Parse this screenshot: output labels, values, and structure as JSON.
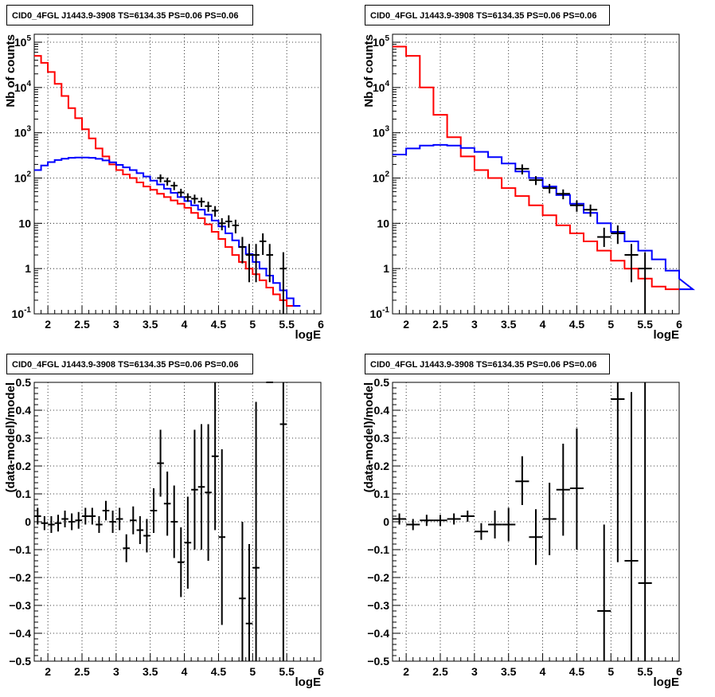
{
  "chart_data": [
    {
      "type": "line",
      "title": "CID0_4FGL J1443.9-3908 TS=6134.35 PS=0.06 PS=0.06",
      "xlabel": "logE",
      "ylabel": "Nb of counts",
      "xlim": [
        1.8,
        6.0
      ],
      "ylim": [
        0.1,
        150000
      ],
      "yscale": "log",
      "grid": true,
      "x_ticks": [
        "2",
        "2.5",
        "3",
        "3.5",
        "4",
        "4.5",
        "5",
        "5.5",
        "6"
      ],
      "y_ticks": [
        "10^-1",
        "1",
        "10",
        "10^2",
        "10^3",
        "10^4",
        "10^5"
      ],
      "bin_width": 0.1,
      "bins_start": 1.8,
      "series": [
        {
          "color": "#ff0000",
          "values": [
            50000,
            35000,
            22000,
            12000,
            6500,
            3500,
            2100,
            1200,
            750,
            450,
            300,
            200,
            150,
            120,
            100,
            80,
            65,
            55,
            45,
            38,
            32,
            27,
            22,
            17,
            13,
            9.5,
            6.5,
            4.5,
            3.0,
            2.0,
            1.4,
            1.0,
            0.75,
            0.55,
            0.38,
            0.27,
            0.2,
            0.15
          ]
        },
        {
          "color": "#0000ff",
          "values": [
            150,
            190,
            225,
            250,
            268,
            280,
            285,
            285,
            280,
            265,
            245,
            222,
            195,
            172,
            150,
            128,
            108,
            88,
            72,
            58,
            47,
            38,
            31,
            25,
            20,
            15.5,
            11.5,
            8.5,
            6.0,
            4.2,
            3.0,
            2.1,
            1.4,
            1.0,
            0.7,
            0.48,
            0.33,
            0.22,
            0.15
          ]
        }
      ],
      "points": [
        {
          "x": 3.65,
          "y": 100,
          "xerr": 0.05,
          "ylo": 80,
          "yhi": 120
        },
        {
          "x": 3.75,
          "y": 85,
          "xerr": 0.05,
          "ylo": 68,
          "yhi": 102
        },
        {
          "x": 3.85,
          "y": 68,
          "xerr": 0.05,
          "ylo": 54,
          "yhi": 82
        },
        {
          "x": 3.95,
          "y": 48,
          "xerr": 0.05,
          "ylo": 38,
          "yhi": 58
        },
        {
          "x": 4.05,
          "y": 38,
          "xerr": 0.05,
          "ylo": 30,
          "yhi": 46
        },
        {
          "x": 4.15,
          "y": 35,
          "xerr": 0.05,
          "ylo": 27,
          "yhi": 43
        },
        {
          "x": 4.25,
          "y": 30,
          "xerr": 0.05,
          "ylo": 23,
          "yhi": 37
        },
        {
          "x": 4.35,
          "y": 24,
          "xerr": 0.05,
          "ylo": 18,
          "yhi": 30
        },
        {
          "x": 4.45,
          "y": 19,
          "xerr": 0.05,
          "ylo": 14,
          "yhi": 24
        },
        {
          "x": 4.55,
          "y": 10,
          "xerr": 0.05,
          "ylo": 7,
          "yhi": 13
        },
        {
          "x": 4.65,
          "y": 11,
          "xerr": 0.05,
          "ylo": 8,
          "yhi": 15
        },
        {
          "x": 4.75,
          "y": 9,
          "xerr": 0.05,
          "ylo": 6,
          "yhi": 12
        },
        {
          "x": 4.85,
          "y": 3,
          "xerr": 0.05,
          "ylo": 1.3,
          "yhi": 5
        },
        {
          "x": 4.95,
          "y": 2,
          "xerr": 0.05,
          "ylo": 0.5,
          "yhi": 3.5
        },
        {
          "x": 5.05,
          "y": 2,
          "xerr": 0.05,
          "ylo": 0.5,
          "yhi": 3.5
        },
        {
          "x": 5.15,
          "y": 4,
          "xerr": 0.05,
          "ylo": 2,
          "yhi": 6
        },
        {
          "x": 5.25,
          "y": 2,
          "xerr": 0.05,
          "ylo": 0.5,
          "yhi": 3.5
        },
        {
          "x": 5.45,
          "y": 1,
          "xerr": 0.05,
          "ylo": 0.1,
          "yhi": 2.3
        }
      ]
    },
    {
      "type": "line",
      "title": "CID0_4FGL J1443.9-3908 TS=6134.35 PS=0.06 PS=0.06",
      "xlabel": "logE",
      "ylabel": "Nb of counts",
      "xlim": [
        1.8,
        6.0
      ],
      "ylim": [
        0.1,
        150000
      ],
      "yscale": "log",
      "grid": true,
      "x_ticks": [
        "2",
        "2.5",
        "3",
        "3.5",
        "4",
        "4.5",
        "5",
        "5.5",
        "6"
      ],
      "y_ticks": [
        "10^-1",
        "1",
        "10",
        "10^2",
        "10^3",
        "10^4",
        "10^5"
      ],
      "bin_width": 0.2,
      "bins_start": 1.8,
      "series": [
        {
          "color": "#ff0000",
          "values": [
            80000,
            50000,
            10000,
            2500,
            800,
            300,
            150,
            100,
            60,
            40,
            25,
            15,
            9,
            6,
            4,
            2.5,
            1.5,
            1.0,
            0.6,
            0.4,
            0.35
          ]
        },
        {
          "color": "#0000ff",
          "values": [
            330,
            450,
            520,
            540,
            520,
            460,
            380,
            290,
            210,
            140,
            100,
            65,
            42,
            27,
            17,
            10,
            6.5,
            4,
            2.5,
            1.6,
            0.9,
            0.6,
            0.35
          ]
        }
      ],
      "points": [
        {
          "x": 3.7,
          "y": 160,
          "xerr": 0.1,
          "ylo": 120,
          "yhi": 200
        },
        {
          "x": 3.9,
          "y": 90,
          "xerr": 0.1,
          "ylo": 70,
          "yhi": 110
        },
        {
          "x": 4.1,
          "y": 60,
          "xerr": 0.1,
          "ylo": 46,
          "yhi": 74
        },
        {
          "x": 4.3,
          "y": 45,
          "xerr": 0.1,
          "ylo": 34,
          "yhi": 56
        },
        {
          "x": 4.5,
          "y": 25,
          "xerr": 0.1,
          "ylo": 18,
          "yhi": 32
        },
        {
          "x": 4.7,
          "y": 20,
          "xerr": 0.1,
          "ylo": 14,
          "yhi": 26
        },
        {
          "x": 4.9,
          "y": 5,
          "xerr": 0.1,
          "ylo": 3,
          "yhi": 8
        },
        {
          "x": 5.1,
          "y": 6,
          "xerr": 0.1,
          "ylo": 3.5,
          "yhi": 9
        },
        {
          "x": 5.3,
          "y": 2,
          "xerr": 0.1,
          "ylo": 0.5,
          "yhi": 3.5
        },
        {
          "x": 5.5,
          "y": 1,
          "xerr": 0.1,
          "ylo": 0.1,
          "yhi": 2.3
        }
      ]
    },
    {
      "type": "scatter",
      "title": "CID0_4FGL J1443.9-3908 TS=6134.35 PS=0.06 PS=0.06",
      "xlabel": "logE",
      "ylabel": "(data-model)/model",
      "xlim": [
        1.8,
        6.0
      ],
      "ylim": [
        -0.5,
        0.5
      ],
      "grid": true,
      "x_ticks": [
        "2",
        "2.5",
        "3",
        "3.5",
        "4",
        "4.5",
        "5",
        "5.5",
        "6"
      ],
      "y_ticks": [
        "-0.5",
        "-0.4",
        "-0.3",
        "-0.2",
        "-0.1",
        "0",
        "0.1",
        "0.2",
        "0.3",
        "0.4",
        "0.5"
      ],
      "points": [
        {
          "x": 1.85,
          "y": 0.02,
          "xerr": 0.05,
          "ylo": -0.01,
          "yhi": 0.05
        },
        {
          "x": 1.95,
          "y": -0.005,
          "xerr": 0.05,
          "ylo": -0.03,
          "yhi": 0.02
        },
        {
          "x": 2.05,
          "y": -0.01,
          "xerr": 0.05,
          "ylo": -0.04,
          "yhi": 0.02
        },
        {
          "x": 2.15,
          "y": -0.005,
          "xerr": 0.05,
          "ylo": -0.035,
          "yhi": 0.025
        },
        {
          "x": 2.25,
          "y": 0.01,
          "xerr": 0.05,
          "ylo": -0.02,
          "yhi": 0.04
        },
        {
          "x": 2.35,
          "y": 0.0,
          "xerr": 0.05,
          "ylo": -0.03,
          "yhi": 0.03
        },
        {
          "x": 2.45,
          "y": 0.005,
          "xerr": 0.05,
          "ylo": -0.025,
          "yhi": 0.035
        },
        {
          "x": 2.55,
          "y": 0.02,
          "xerr": 0.05,
          "ylo": -0.01,
          "yhi": 0.05
        },
        {
          "x": 2.65,
          "y": 0.02,
          "xerr": 0.05,
          "ylo": -0.01,
          "yhi": 0.05
        },
        {
          "x": 2.75,
          "y": -0.01,
          "xerr": 0.05,
          "ylo": -0.04,
          "yhi": 0.02
        },
        {
          "x": 2.85,
          "y": 0.04,
          "xerr": 0.05,
          "ylo": 0.005,
          "yhi": 0.075
        },
        {
          "x": 2.95,
          "y": 0.0,
          "xerr": 0.05,
          "ylo": -0.04,
          "yhi": 0.04
        },
        {
          "x": 3.05,
          "y": 0.01,
          "xerr": 0.05,
          "ylo": -0.03,
          "yhi": 0.05
        },
        {
          "x": 3.15,
          "y": -0.095,
          "xerr": 0.05,
          "ylo": -0.145,
          "yhi": -0.045
        },
        {
          "x": 3.25,
          "y": 0.005,
          "xerr": 0.05,
          "ylo": -0.045,
          "yhi": 0.055
        },
        {
          "x": 3.35,
          "y": -0.03,
          "xerr": 0.05,
          "ylo": -0.08,
          "yhi": 0.02
        },
        {
          "x": 3.45,
          "y": -0.05,
          "xerr": 0.05,
          "ylo": -0.11,
          "yhi": 0.01
        },
        {
          "x": 3.55,
          "y": 0.04,
          "xerr": 0.05,
          "ylo": -0.04,
          "yhi": 0.12
        },
        {
          "x": 3.65,
          "y": 0.21,
          "xerr": 0.05,
          "ylo": 0.09,
          "yhi": 0.33
        },
        {
          "x": 3.75,
          "y": 0.065,
          "xerr": 0.05,
          "ylo": -0.05,
          "yhi": 0.18
        },
        {
          "x": 3.85,
          "y": 0.0,
          "xerr": 0.05,
          "ylo": -0.13,
          "yhi": 0.13
        },
        {
          "x": 3.95,
          "y": -0.145,
          "xerr": 0.05,
          "ylo": -0.27,
          "yhi": -0.02
        },
        {
          "x": 4.05,
          "y": -0.075,
          "xerr": 0.05,
          "ylo": -0.24,
          "yhi": 0.09
        },
        {
          "x": 4.15,
          "y": 0.115,
          "xerr": 0.05,
          "ylo": -0.1,
          "yhi": 0.33
        },
        {
          "x": 4.25,
          "y": 0.125,
          "xerr": 0.05,
          "ylo": -0.1,
          "yhi": 0.35
        },
        {
          "x": 4.35,
          "y": 0.105,
          "xerr": 0.05,
          "ylo": -0.14,
          "yhi": 0.35
        },
        {
          "x": 4.45,
          "y": 0.235,
          "xerr": 0.05,
          "ylo": -0.03,
          "yhi": 0.5
        },
        {
          "x": 4.55,
          "y": -0.055,
          "xerr": 0.05,
          "ylo": -0.37,
          "yhi": 0.26
        },
        {
          "x": 4.85,
          "y": -0.275,
          "xerr": 0.05,
          "ylo": -0.5,
          "yhi": 0.0
        },
        {
          "x": 4.95,
          "y": -0.365,
          "xerr": 0.05,
          "ylo": -0.5,
          "yhi": -0.08
        },
        {
          "x": 5.05,
          "y": -0.165,
          "xerr": 0.05,
          "ylo": -0.5,
          "yhi": 0.43
        },
        {
          "x": 5.25,
          "y": 0.5,
          "xerr": 0.05,
          "ylo": 0.5,
          "yhi": 0.5
        },
        {
          "x": 5.45,
          "y": 0.35,
          "xerr": 0.05,
          "ylo": -0.5,
          "yhi": 0.5
        }
      ]
    },
    {
      "type": "scatter",
      "title": "CID0_4FGL J1443.9-3908 TS=6134.35 PS=0.06 PS=0.06",
      "xlabel": "logE",
      "ylabel": "(data-model)/model",
      "xlim": [
        1.8,
        6.0
      ],
      "ylim": [
        -0.5,
        0.5
      ],
      "grid": true,
      "x_ticks": [
        "2",
        "2.5",
        "3",
        "3.5",
        "4",
        "4.5",
        "5",
        "5.5",
        "6"
      ],
      "y_ticks": [
        "-0.5",
        "-0.4",
        "-0.3",
        "-0.2",
        "-0.1",
        "0",
        "0.1",
        "0.2",
        "0.3",
        "0.4",
        "0.5"
      ],
      "points": [
        {
          "x": 1.9,
          "y": 0.01,
          "xerr": 0.1,
          "ylo": -0.01,
          "yhi": 0.03
        },
        {
          "x": 2.1,
          "y": -0.01,
          "xerr": 0.1,
          "ylo": -0.03,
          "yhi": 0.01
        },
        {
          "x": 2.3,
          "y": 0.005,
          "xerr": 0.1,
          "ylo": -0.015,
          "yhi": 0.025
        },
        {
          "x": 2.5,
          "y": 0.005,
          "xerr": 0.1,
          "ylo": -0.015,
          "yhi": 0.025
        },
        {
          "x": 2.7,
          "y": 0.01,
          "xerr": 0.1,
          "ylo": -0.01,
          "yhi": 0.03
        },
        {
          "x": 2.9,
          "y": 0.02,
          "xerr": 0.1,
          "ylo": 0.0,
          "yhi": 0.04
        },
        {
          "x": 3.1,
          "y": -0.035,
          "xerr": 0.1,
          "ylo": -0.065,
          "yhi": -0.005
        },
        {
          "x": 3.3,
          "y": -0.01,
          "xerr": 0.1,
          "ylo": -0.06,
          "yhi": 0.04
        },
        {
          "x": 3.5,
          "y": -0.01,
          "xerr": 0.1,
          "ylo": -0.07,
          "yhi": 0.05
        },
        {
          "x": 3.7,
          "y": 0.145,
          "xerr": 0.1,
          "ylo": 0.06,
          "yhi": 0.235
        },
        {
          "x": 3.9,
          "y": -0.055,
          "xerr": 0.1,
          "ylo": -0.155,
          "yhi": 0.045
        },
        {
          "x": 4.1,
          "y": 0.01,
          "xerr": 0.1,
          "ylo": -0.12,
          "yhi": 0.14
        },
        {
          "x": 4.3,
          "y": 0.115,
          "xerr": 0.1,
          "ylo": -0.05,
          "yhi": 0.28
        },
        {
          "x": 4.5,
          "y": 0.12,
          "xerr": 0.1,
          "ylo": -0.1,
          "yhi": 0.335
        },
        {
          "x": 4.9,
          "y": -0.32,
          "xerr": 0.1,
          "ylo": -0.5,
          "yhi": -0.01
        },
        {
          "x": 5.1,
          "y": 0.44,
          "xerr": 0.1,
          "ylo": -0.145,
          "yhi": 0.5
        },
        {
          "x": 5.3,
          "y": -0.14,
          "xerr": 0.1,
          "ylo": -0.5,
          "yhi": 0.465
        },
        {
          "x": 5.5,
          "y": -0.22,
          "xerr": 0.1,
          "ylo": -0.5,
          "yhi": 0.5
        }
      ]
    }
  ]
}
